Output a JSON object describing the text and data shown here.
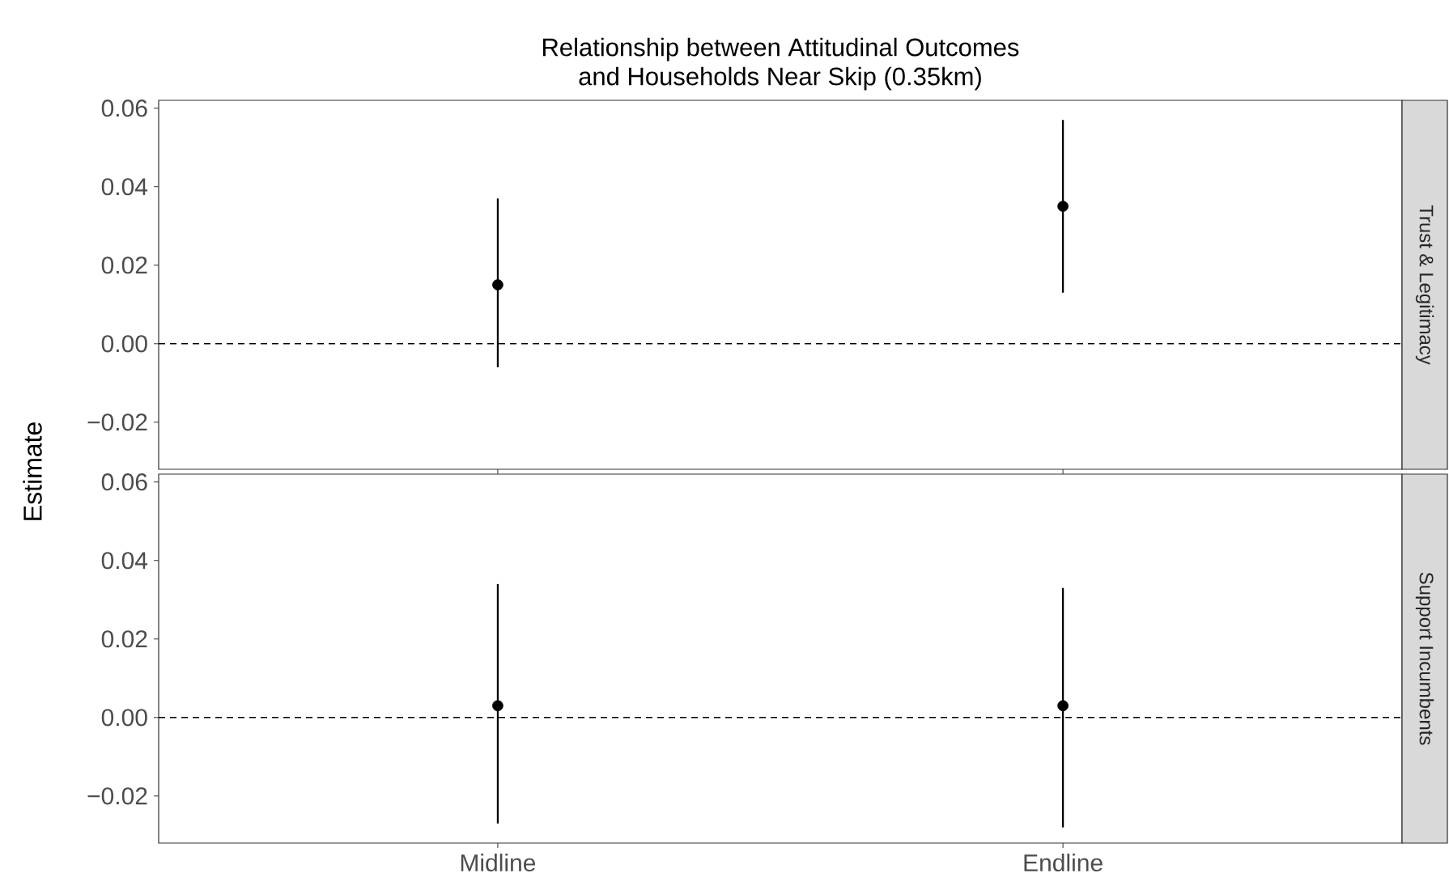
{
  "chart_data": [
    {
      "type": "scatter",
      "title": "Relationship between Attitudinal Outcomes\nand Households Near Skip (0.35km)",
      "annotations": [
        "Trust & Legitimacy"
      ],
      "ylabel": "Estimate",
      "categories": [
        null,
        null
      ],
      "series": [
        {
          "color": "#000000",
          "values": [
            0.015,
            0.035
          ],
          "errors": [
            [
              -0.006,
              0.037
            ],
            [
              0.013,
              0.057
            ]
          ]
        }
      ],
      "ylim": [
        -0.032,
        0.062
      ],
      "yticks": [
        {
          "value": -0.02,
          "label": "−0.02"
        },
        {
          "value": 0,
          "label": "0.00"
        },
        {
          "value": 0.02,
          "label": "0.02"
        },
        {
          "value": 0.04,
          "label": "0.04"
        },
        {
          "value": 0.06,
          "label": "0.06"
        }
      ],
      "ref_lines": [
        {
          "axis": "y",
          "value": 0,
          "color": "#000000",
          "line_style": "dashed"
        }
      ],
      "marker": "circle",
      "grid": false,
      "tick_labels": "y"
    },
    {
      "type": "scatter",
      "annotations": [
        "Support Incumbents"
      ],
      "categories": [
        "Midline",
        "Endline"
      ],
      "series": [
        {
          "color": "#000000",
          "values": [
            0.003,
            0.003
          ],
          "errors": [
            [
              -0.027,
              0.034
            ],
            [
              -0.028,
              0.033
            ]
          ]
        }
      ],
      "ylim": [
        -0.032,
        0.062
      ],
      "yticks": [
        {
          "value": -0.02,
          "label": "−0.02"
        },
        {
          "value": 0,
          "label": "0.00"
        },
        {
          "value": 0.02,
          "label": "0.02"
        },
        {
          "value": 0.04,
          "label": "0.04"
        },
        {
          "value": 0.06,
          "label": "0.06"
        }
      ],
      "ref_lines": [
        {
          "axis": "y",
          "value": 0,
          "color": "#000000",
          "line_style": "dashed"
        }
      ],
      "marker": "circle",
      "grid": false
    }
  ]
}
